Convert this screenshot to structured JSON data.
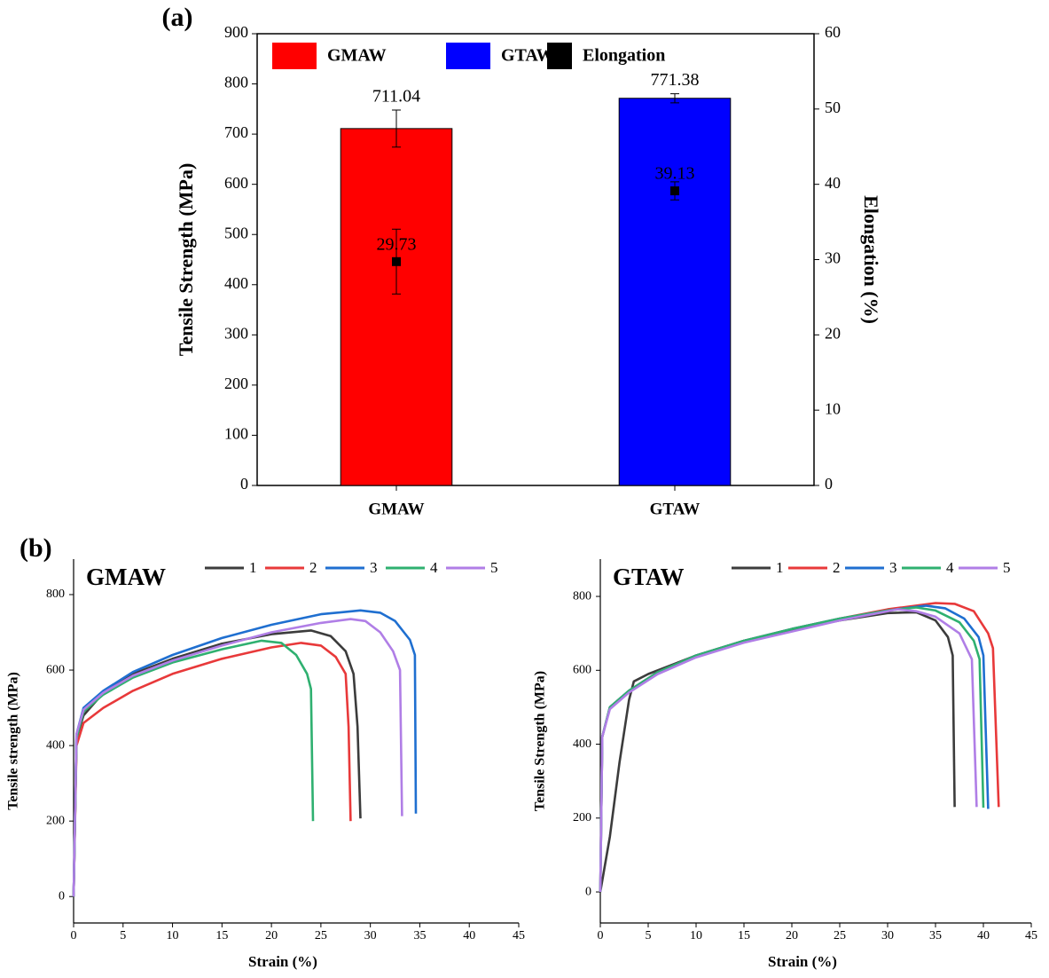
{
  "chart_data": [
    {
      "type": "bar",
      "label": "(a)",
      "categories": [
        "GMAW",
        "GTAW"
      ],
      "ylabel": "Tensile Strength (MPa)",
      "y2label": "Elongation (%)",
      "ylim": [
        0,
        900
      ],
      "yticks": [
        0,
        100,
        200,
        300,
        400,
        500,
        600,
        700,
        800,
        900
      ],
      "y2lim": [
        0,
        60
      ],
      "y2ticks": [
        0,
        10,
        20,
        30,
        40,
        50,
        60
      ],
      "series": [
        {
          "name": "GMAW",
          "color": "#ff0000",
          "values": [
            711.04,
            null
          ],
          "errors": [
            37,
            null
          ]
        },
        {
          "name": "GTAW",
          "color": "#0000ff",
          "values": [
            null,
            771.38
          ],
          "errors": [
            null,
            9
          ]
        },
        {
          "name": "Elongation",
          "type": "scatter",
          "axis": "y2",
          "color": "#000000",
          "values": [
            29.73,
            39.13
          ],
          "errors": [
            4.3,
            1.2
          ]
        }
      ]
    },
    {
      "type": "line",
      "label": "(b)",
      "title": "GMAW",
      "xlabel": "Strain (%)",
      "ylabel": "Tensile strength (MPa)",
      "xlim": [
        0,
        45
      ],
      "xticks": [
        0,
        5,
        10,
        15,
        20,
        25,
        30,
        35,
        40,
        45
      ],
      "ylim": [
        -70,
        894
      ],
      "yticks": [
        0,
        200,
        400,
        600,
        800
      ],
      "series": [
        {
          "name": "1",
          "color": "#3c3c3c",
          "x": [
            0,
            0.3,
            1,
            3,
            6,
            10,
            15,
            20,
            24,
            26,
            27.5,
            28.3,
            28.7,
            29
          ],
          "values": [
            0,
            420,
            480,
            540,
            590,
            630,
            670,
            695,
            705,
            690,
            650,
            590,
            450,
            207
          ]
        },
        {
          "name": "2",
          "color": "#e8393a",
          "x": [
            0,
            0.3,
            1,
            3,
            6,
            10,
            15,
            20,
            23,
            25,
            26.5,
            27.5,
            27.8,
            28
          ],
          "values": [
            0,
            400,
            460,
            500,
            545,
            590,
            630,
            660,
            672,
            665,
            635,
            590,
            450,
            200
          ]
        },
        {
          "name": "3",
          "color": "#1f6fd0",
          "x": [
            0,
            0.3,
            1,
            3,
            6,
            10,
            15,
            20,
            25,
            29,
            31,
            32.5,
            34,
            34.5,
            34.6
          ],
          "values": [
            0,
            430,
            500,
            545,
            595,
            640,
            685,
            720,
            748,
            758,
            752,
            730,
            680,
            640,
            220
          ]
        },
        {
          "name": "4",
          "color": "#2fb070",
          "x": [
            0,
            0.3,
            1,
            3,
            6,
            10,
            15,
            19,
            21,
            22.5,
            23.6,
            24,
            24.2
          ],
          "values": [
            0,
            420,
            490,
            535,
            580,
            620,
            655,
            678,
            672,
            640,
            590,
            550,
            200
          ]
        },
        {
          "name": "5",
          "color": "#b07ee6",
          "x": [
            0,
            0.3,
            1,
            3,
            6,
            10,
            15,
            20,
            25,
            28,
            29.5,
            31,
            32.3,
            33,
            33.2
          ],
          "values": [
            0,
            430,
            495,
            540,
            585,
            625,
            665,
            700,
            725,
            735,
            730,
            700,
            650,
            600,
            213
          ]
        }
      ]
    },
    {
      "type": "line",
      "title": "GTAW",
      "xlabel": "Strain (%)",
      "ylabel": "Tensile Strength (MPa)",
      "xlim": [
        0,
        45
      ],
      "xticks": [
        0,
        5,
        10,
        15,
        20,
        25,
        30,
        35,
        40,
        45
      ],
      "ylim": [
        -84,
        901
      ],
      "yticks": [
        0,
        200,
        400,
        600,
        800
      ],
      "series": [
        {
          "name": "1",
          "color": "#3c3c3c",
          "x": [
            0,
            1,
            2,
            3,
            3.5,
            5,
            10,
            15,
            20,
            25,
            30,
            33,
            35,
            36.3,
            36.8,
            37
          ],
          "values": [
            0,
            150,
            350,
            520,
            570,
            590,
            640,
            680,
            710,
            735,
            755,
            757,
            735,
            690,
            640,
            230
          ]
        },
        {
          "name": "2",
          "color": "#e8393a",
          "x": [
            0,
            0.2,
            1,
            3,
            6,
            10,
            15,
            20,
            25,
            30,
            35,
            37,
            39,
            40.5,
            41,
            41.6
          ],
          "values": [
            0,
            420,
            500,
            545,
            595,
            640,
            680,
            712,
            740,
            765,
            782,
            780,
            760,
            700,
            660,
            230
          ]
        },
        {
          "name": "3",
          "color": "#1f6fd0",
          "x": [
            0,
            0.2,
            1,
            3,
            6,
            10,
            15,
            20,
            25,
            30,
            34,
            36,
            38,
            39.5,
            40,
            40.5
          ],
          "values": [
            0,
            420,
            500,
            545,
            595,
            640,
            680,
            712,
            740,
            762,
            775,
            768,
            740,
            690,
            640,
            225
          ]
        },
        {
          "name": "4",
          "color": "#2fb070",
          "x": [
            0,
            0.2,
            1,
            3,
            6,
            10,
            15,
            20,
            25,
            30,
            33,
            35,
            37.5,
            39,
            39.6,
            40
          ],
          "values": [
            0,
            420,
            500,
            545,
            595,
            640,
            680,
            712,
            740,
            762,
            770,
            762,
            730,
            680,
            630,
            228
          ]
        },
        {
          "name": "5",
          "color": "#b07ee6",
          "x": [
            0,
            0.2,
            1,
            3,
            6,
            10,
            15,
            20,
            25,
            29,
            31,
            33,
            35,
            37.5,
            38.8,
            39.3
          ],
          "values": [
            0,
            420,
            495,
            540,
            590,
            635,
            675,
            705,
            735,
            755,
            765,
            760,
            745,
            700,
            630,
            230
          ]
        }
      ]
    }
  ]
}
